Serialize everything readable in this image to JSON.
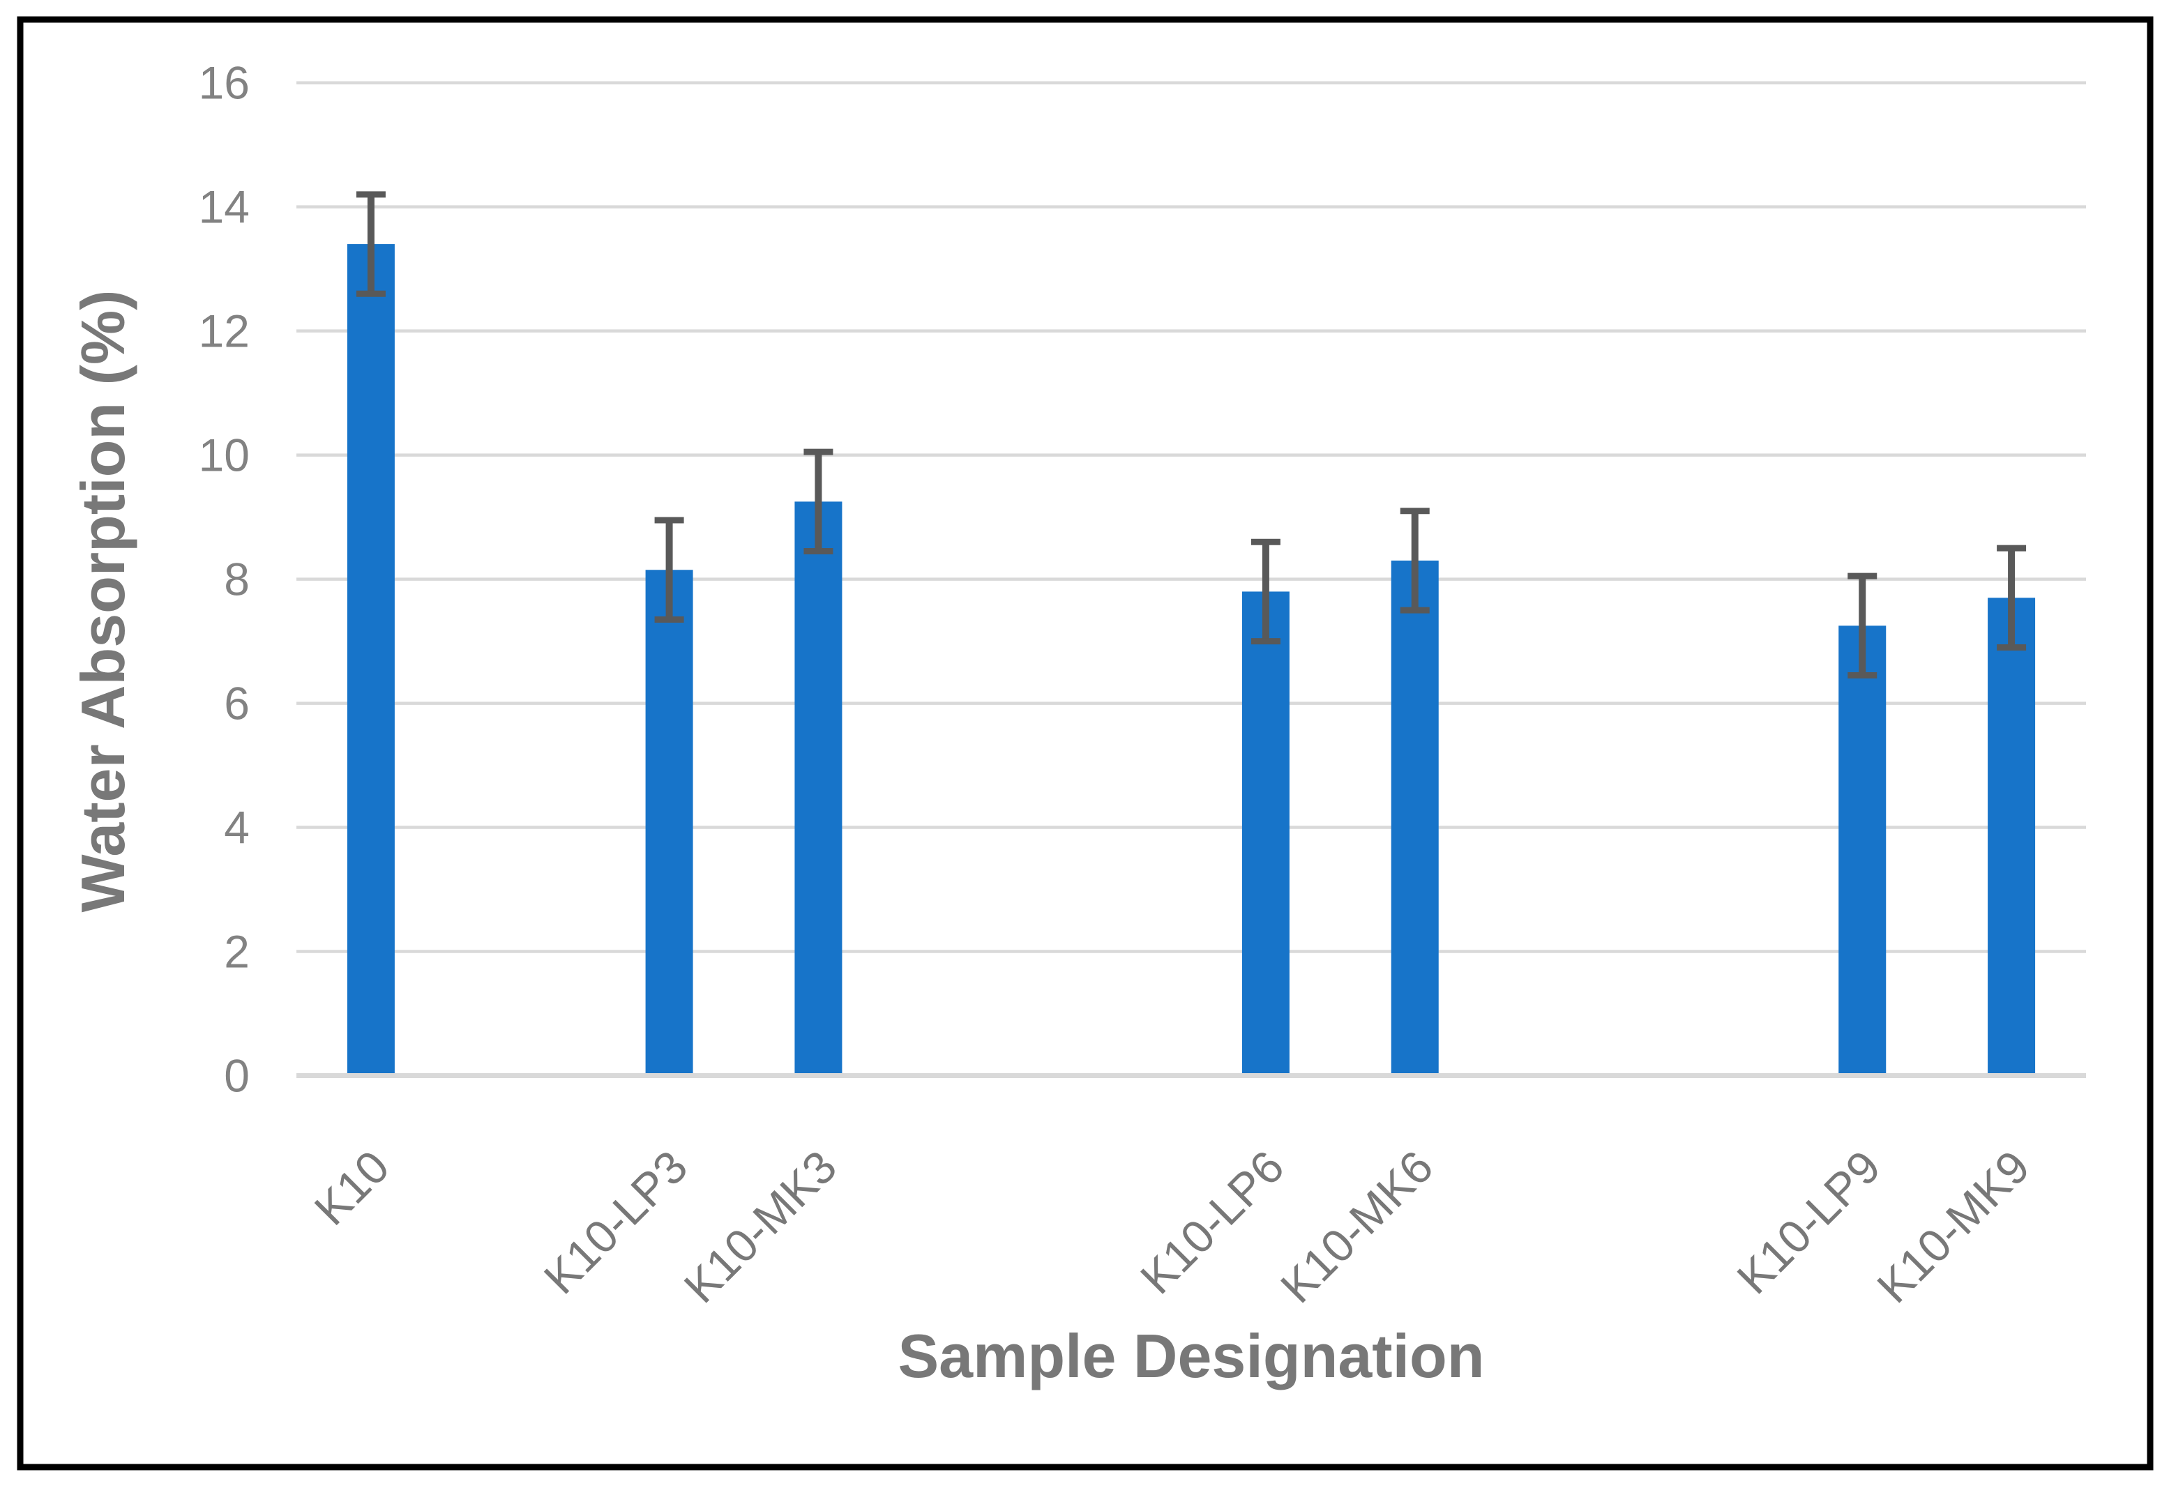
{
  "chart_data": {
    "type": "bar",
    "title": "",
    "xlabel": "Sample Designation",
    "ylabel": "Water Absorption (%)",
    "ylim": [
      0,
      16
    ],
    "yticks": [
      0,
      2,
      4,
      6,
      8,
      10,
      12,
      14,
      16
    ],
    "grid": true,
    "legend": false,
    "slot_count": 12,
    "categories": [
      {
        "label": "K10",
        "value": 13.4,
        "error": 0.8,
        "slot": 1
      },
      {
        "label": "K10-LP3",
        "value": 8.15,
        "error": 0.8,
        "slot": 3
      },
      {
        "label": "K10-MK3",
        "value": 9.25,
        "error": 0.8,
        "slot": 4
      },
      {
        "label": "K10-LP6",
        "value": 7.8,
        "error": 0.8,
        "slot": 7
      },
      {
        "label": "K10-MK6",
        "value": 8.3,
        "error": 0.8,
        "slot": 8
      },
      {
        "label": "K10-LP9",
        "value": 7.25,
        "error": 0.8,
        "slot": 11
      },
      {
        "label": "K10-MK9",
        "value": 7.7,
        "error": 0.8,
        "slot": 12
      }
    ],
    "colors": {
      "bar_fill": "#1774C9",
      "error_bar": "#595959",
      "gridline": "#D9D9D9",
      "axis_line": "#D9D9D9",
      "tick_label": "#828282",
      "axis_title": "#787878",
      "outer_border": "#000000",
      "background": "#FFFFFF"
    }
  }
}
